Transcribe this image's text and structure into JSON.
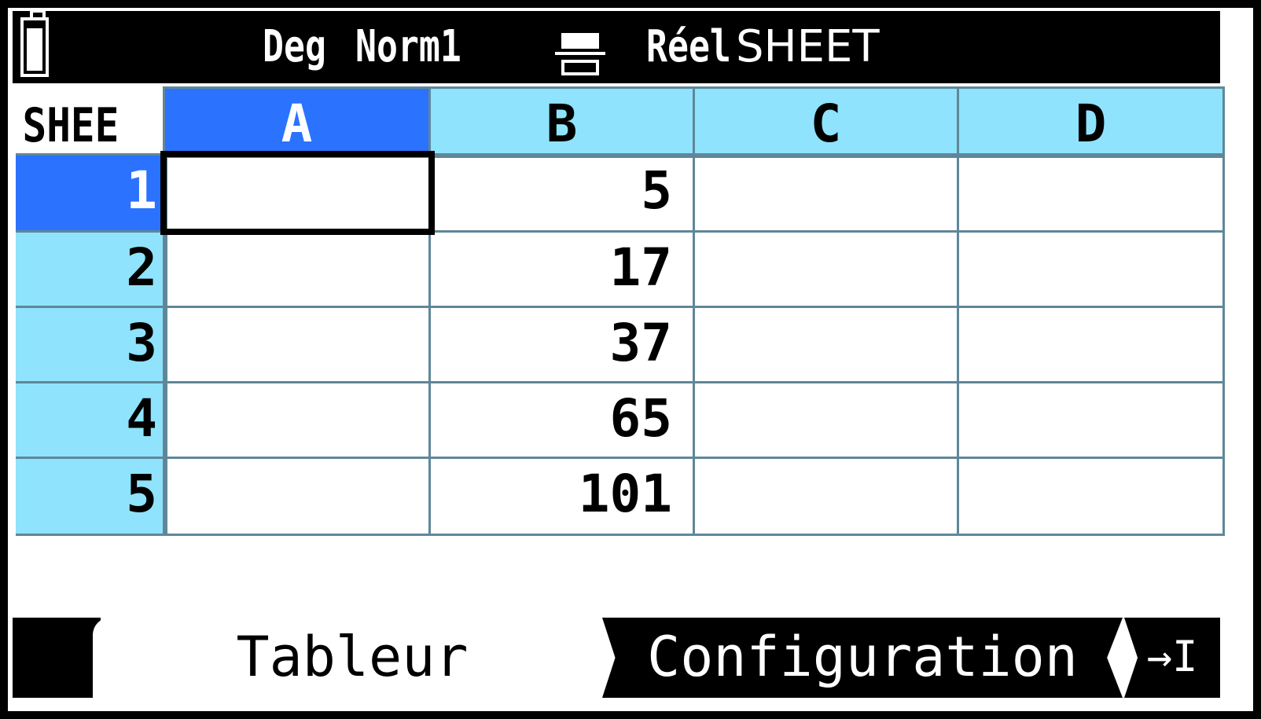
{
  "status_bar": {
    "angle": "Deg",
    "display": "Norm1",
    "number_mode": "Réel",
    "app": "SHEET",
    "icons": [
      "battery-icon",
      "fraction-input-icon"
    ]
  },
  "sheet": {
    "corner_label": "SHEE",
    "columns": [
      "A",
      "B",
      "C",
      "D"
    ],
    "rows": [
      {
        "label": "1",
        "cells": [
          "",
          "5",
          "",
          ""
        ]
      },
      {
        "label": "2",
        "cells": [
          "",
          "17",
          "",
          ""
        ]
      },
      {
        "label": "3",
        "cells": [
          "",
          "37",
          "",
          ""
        ]
      },
      {
        "label": "4",
        "cells": [
          "",
          "65",
          "",
          ""
        ]
      },
      {
        "label": "5",
        "cells": [
          "",
          "101",
          "",
          ""
        ]
      }
    ],
    "selected_cell": "A1"
  },
  "function_bar": {
    "tabs": [
      "Tableur",
      "Configuration"
    ],
    "jump_label": "→I",
    "active_tab": "Tableur"
  },
  "colors": {
    "header": "#8fe3fc",
    "selected": "#2b72ff",
    "grid": "#5f8799"
  }
}
